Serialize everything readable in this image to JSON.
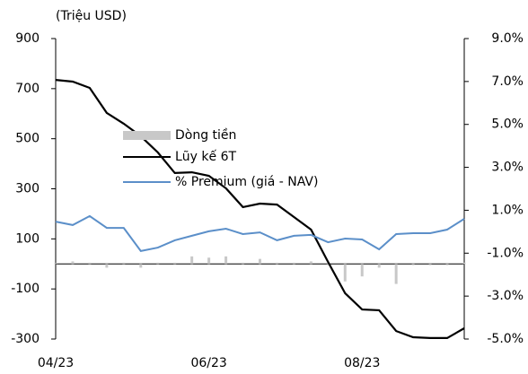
{
  "chart_data": {
    "type": "bar-line",
    "y_label": "(Triệu USD)",
    "categories": [
      "04/23",
      null,
      null,
      null,
      null,
      null,
      null,
      null,
      null,
      "06/23",
      null,
      null,
      null,
      null,
      null,
      null,
      null,
      null,
      "08/23",
      null,
      null,
      null,
      null,
      null,
      null
    ],
    "series": [
      {
        "name": "Dòng tiền",
        "type": "bar",
        "color": "#c8c8c8",
        "axis": "y",
        "values": [
          3,
          10,
          5,
          -15,
          5,
          -15,
          5,
          5,
          30,
          25,
          30,
          5,
          20,
          5,
          5,
          10,
          -5,
          -70,
          -50,
          -15,
          -80,
          -5,
          -5,
          -5,
          5
        ]
      },
      {
        "name": "Lũy kế 6T",
        "type": "line",
        "color": "#000000",
        "axis": "y",
        "values": [
          735,
          728,
          703,
          603,
          560,
          510,
          445,
          363,
          366,
          352,
          302,
          227,
          241,
          237,
          187,
          137,
          8,
          -117,
          -182,
          -185,
          -268,
          -293,
          -296,
          -296,
          -257
        ]
      },
      {
        "name": "% Premium (giá - NAV)",
        "type": "line",
        "color": "#5b8fc9",
        "axis": "y2",
        "values": [
          0.47,
          0.31,
          0.73,
          0.18,
          0.18,
          -0.9,
          -0.74,
          -0.4,
          -0.19,
          0.02,
          0.14,
          -0.11,
          -0.03,
          -0.4,
          -0.19,
          -0.15,
          -0.49,
          -0.32,
          -0.36,
          -0.82,
          -0.11,
          -0.07,
          -0.07,
          0.1,
          0.6
        ]
      }
    ],
    "ylim": [
      -300,
      900
    ],
    "yticks": [
      900,
      700,
      500,
      300,
      100,
      -100,
      -300
    ],
    "y2lim": [
      -5,
      9
    ],
    "y2ticks": [
      {
        "value": 9,
        "label": "9.0%"
      },
      {
        "value": 7,
        "label": "7.0%"
      },
      {
        "value": 5,
        "label": "5.0%"
      },
      {
        "value": 3,
        "label": "3.0%"
      },
      {
        "value": 1,
        "label": "1.0%"
      },
      {
        "value": -1,
        "label": "-1.0%"
      },
      {
        "value": -3,
        "label": "-3.0%"
      },
      {
        "value": -5,
        "label": "-5.0%"
      }
    ],
    "legend": "center"
  }
}
